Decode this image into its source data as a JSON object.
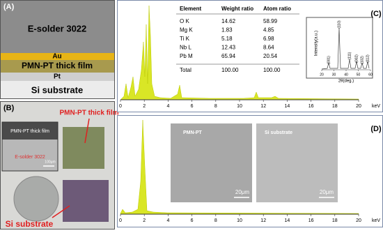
{
  "panels": {
    "a": {
      "label": "(A)",
      "layers": [
        "E-solder 3022",
        "Au",
        "PMN-PT thick film",
        "Pt",
        "Si substrate"
      ]
    },
    "b": {
      "label": "(B)",
      "inset_film": "PMN-PT thick film",
      "inset_solder": "E-solder 3022",
      "scale_bar": "100μm",
      "film_label": "PMN-PT thick film",
      "substrate_label": "Si substrate"
    },
    "c": {
      "label": "(C)",
      "table": {
        "header": [
          "Element",
          "Weight ratio",
          "Atom ratio"
        ],
        "rows": [
          [
            "O K",
            "14.62",
            "58.99"
          ],
          [
            "Mg K",
            "1.83",
            "4.85"
          ],
          [
            "Ti K",
            "5.18",
            "6.98"
          ],
          [
            "Nb L",
            "12.43",
            "8.64"
          ],
          [
            "Pb M",
            "65.94",
            "20.54"
          ]
        ],
        "total": [
          "Total",
          "100.00",
          "100.00"
        ]
      },
      "xrd": {
        "ylabel": "Intensity(a.u.)",
        "xlabel": "2θ(deg.)",
        "peaks": [
          "(001)",
          "(110)",
          "(111)",
          "(002)",
          "(102)",
          "(112)"
        ],
        "xticks": [
          20,
          30,
          40,
          50,
          60
        ]
      },
      "xticks": [
        0,
        2,
        4,
        6,
        8,
        10,
        12,
        14,
        16,
        18,
        20
      ],
      "xunit": "keV"
    },
    "d": {
      "label": "(D)",
      "images": [
        {
          "title": "PMN-PT",
          "scale": "20μm"
        },
        {
          "title": "Si substrate",
          "scale": "20μm"
        }
      ],
      "xticks": [
        0,
        2,
        4,
        6,
        8,
        10,
        12,
        14,
        16,
        18,
        20
      ],
      "xunit": "keV"
    }
  }
}
